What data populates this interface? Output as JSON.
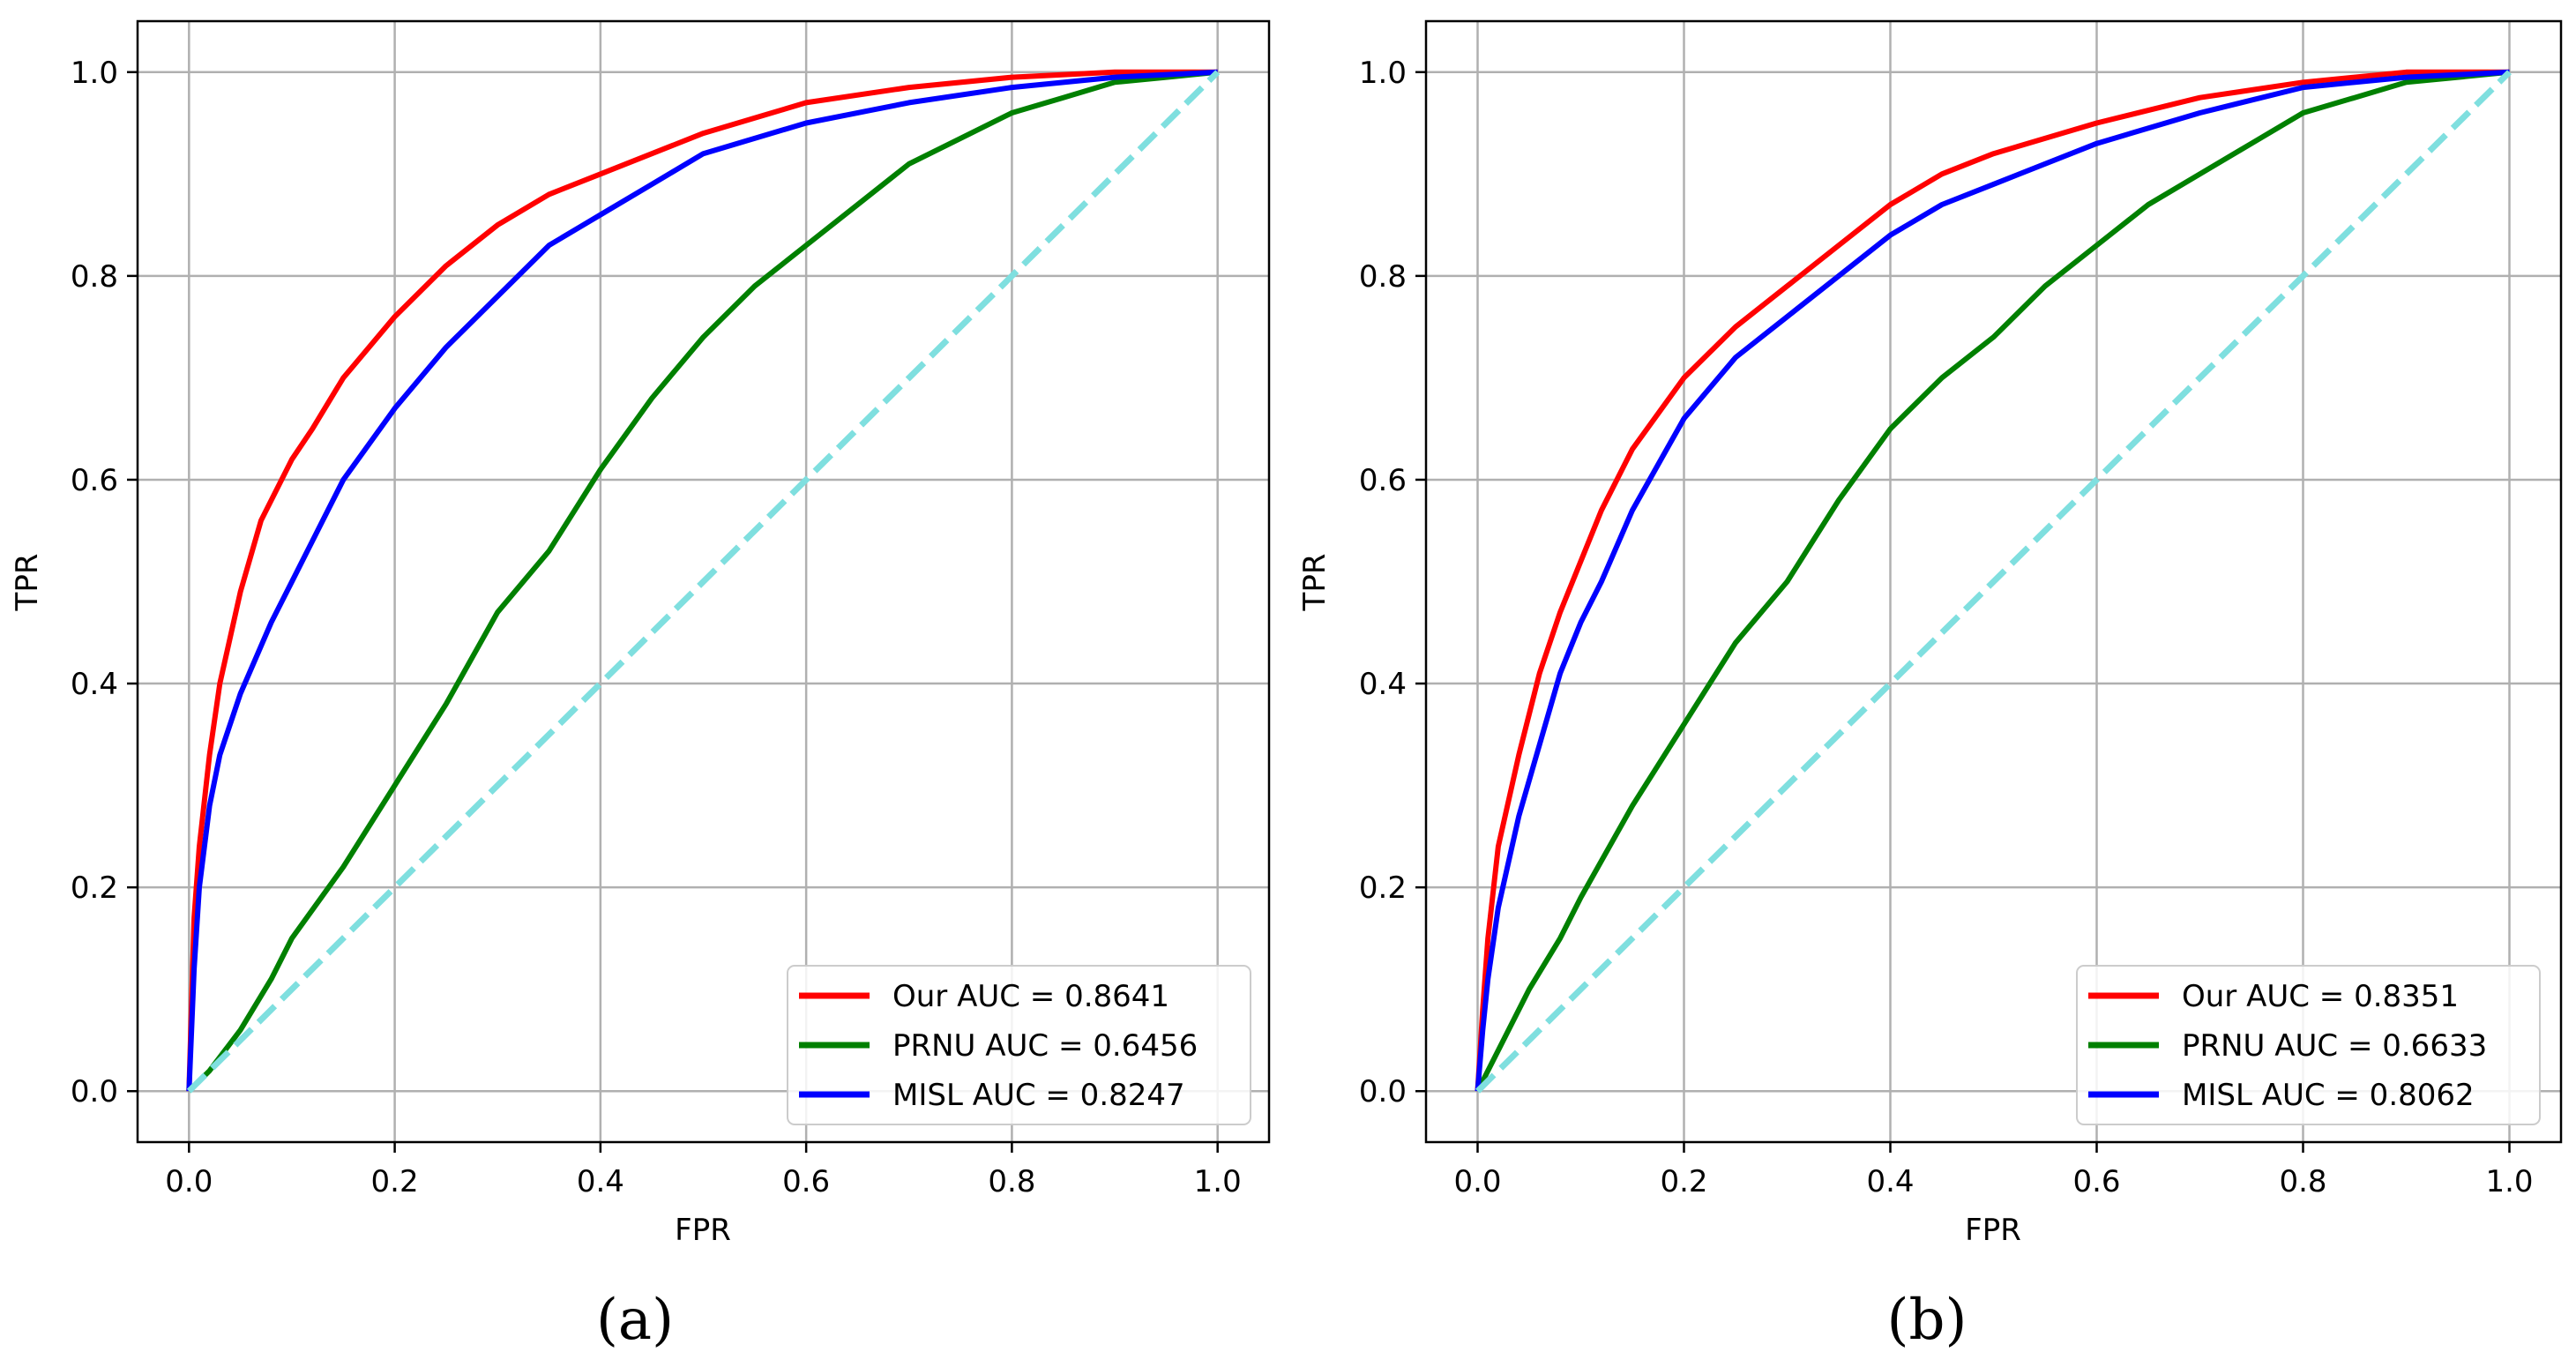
{
  "chart_data": [
    {
      "type": "line",
      "panel_label": "(a)",
      "xlabel": "FPR",
      "ylabel": "TPR",
      "xlim": [
        -0.05,
        1.05
      ],
      "ylim": [
        -0.05,
        1.05
      ],
      "xticks": [
        0.0,
        0.2,
        0.4,
        0.6,
        0.8,
        1.0
      ],
      "yticks": [
        0.0,
        0.2,
        0.4,
        0.6,
        0.8,
        1.0
      ],
      "xtick_labels": [
        "0.0",
        "0.2",
        "0.4",
        "0.6",
        "0.8",
        "1.0"
      ],
      "ytick_labels": [
        "0.0",
        "0.2",
        "0.4",
        "0.6",
        "0.8",
        "1.0"
      ],
      "grid": true,
      "legend_position": "lower-right",
      "series": [
        {
          "name": "Our AUC = 0.8641",
          "color": "#ff0000",
          "style": "solid",
          "x": [
            0,
            0.005,
            0.01,
            0.02,
            0.03,
            0.05,
            0.07,
            0.1,
            0.12,
            0.15,
            0.2,
            0.25,
            0.3,
            0.35,
            0.4,
            0.45,
            0.5,
            0.6,
            0.7,
            0.8,
            0.9,
            1.0
          ],
          "y": [
            0,
            0.17,
            0.24,
            0.33,
            0.4,
            0.49,
            0.56,
            0.62,
            0.65,
            0.7,
            0.76,
            0.81,
            0.85,
            0.88,
            0.9,
            0.92,
            0.94,
            0.97,
            0.985,
            0.995,
            1.0,
            1.0
          ]
        },
        {
          "name": "PRNU AUC = 0.6456",
          "color": "#008000",
          "style": "solid",
          "x": [
            0,
            0.02,
            0.05,
            0.08,
            0.1,
            0.15,
            0.2,
            0.25,
            0.3,
            0.35,
            0.4,
            0.45,
            0.5,
            0.55,
            0.6,
            0.65,
            0.7,
            0.75,
            0.8,
            0.85,
            0.9,
            0.95,
            1.0
          ],
          "y": [
            0,
            0.02,
            0.06,
            0.11,
            0.15,
            0.22,
            0.3,
            0.38,
            0.47,
            0.53,
            0.61,
            0.68,
            0.74,
            0.79,
            0.83,
            0.87,
            0.91,
            0.935,
            0.96,
            0.975,
            0.99,
            0.995,
            1.0
          ]
        },
        {
          "name": "MISL AUC = 0.8247",
          "color": "#0000ff",
          "style": "solid",
          "x": [
            0,
            0.005,
            0.01,
            0.02,
            0.03,
            0.05,
            0.08,
            0.1,
            0.12,
            0.15,
            0.2,
            0.25,
            0.3,
            0.35,
            0.4,
            0.45,
            0.5,
            0.6,
            0.7,
            0.8,
            0.9,
            1.0
          ],
          "y": [
            0,
            0.12,
            0.2,
            0.28,
            0.33,
            0.39,
            0.46,
            0.5,
            0.54,
            0.6,
            0.67,
            0.73,
            0.78,
            0.83,
            0.86,
            0.89,
            0.92,
            0.95,
            0.97,
            0.985,
            0.995,
            1.0
          ]
        },
        {
          "name": "",
          "color": "#7fdfdf",
          "style": "dashed",
          "x": [
            0,
            1
          ],
          "y": [
            0,
            1
          ]
        }
      ]
    },
    {
      "type": "line",
      "panel_label": "(b)",
      "xlabel": "FPR",
      "ylabel": "TPR",
      "xlim": [
        -0.05,
        1.05
      ],
      "ylim": [
        -0.05,
        1.05
      ],
      "xticks": [
        0.0,
        0.2,
        0.4,
        0.6,
        0.8,
        1.0
      ],
      "yticks": [
        0.0,
        0.2,
        0.4,
        0.6,
        0.8,
        1.0
      ],
      "xtick_labels": [
        "0.0",
        "0.2",
        "0.4",
        "0.6",
        "0.8",
        "1.0"
      ],
      "ytick_labels": [
        "0.0",
        "0.2",
        "0.4",
        "0.6",
        "0.8",
        "1.0"
      ],
      "grid": true,
      "legend_position": "lower-right",
      "series": [
        {
          "name": "Our AUC = 0.8351",
          "color": "#ff0000",
          "style": "solid",
          "x": [
            0,
            0.005,
            0.01,
            0.02,
            0.04,
            0.06,
            0.08,
            0.1,
            0.12,
            0.15,
            0.2,
            0.25,
            0.3,
            0.35,
            0.4,
            0.45,
            0.5,
            0.6,
            0.7,
            0.8,
            0.9,
            1.0
          ],
          "y": [
            0,
            0.08,
            0.15,
            0.24,
            0.33,
            0.41,
            0.47,
            0.52,
            0.57,
            0.63,
            0.7,
            0.75,
            0.79,
            0.83,
            0.87,
            0.9,
            0.92,
            0.95,
            0.975,
            0.99,
            1.0,
            1.0
          ]
        },
        {
          "name": "PRNU AUC = 0.6633",
          "color": "#008000",
          "style": "solid",
          "x": [
            0,
            0.02,
            0.05,
            0.08,
            0.1,
            0.15,
            0.2,
            0.25,
            0.3,
            0.35,
            0.4,
            0.45,
            0.5,
            0.55,
            0.6,
            0.65,
            0.7,
            0.75,
            0.8,
            0.85,
            0.9,
            0.95,
            1.0
          ],
          "y": [
            0,
            0.04,
            0.1,
            0.15,
            0.19,
            0.28,
            0.36,
            0.44,
            0.5,
            0.58,
            0.65,
            0.7,
            0.74,
            0.79,
            0.83,
            0.87,
            0.9,
            0.93,
            0.96,
            0.975,
            0.99,
            0.995,
            1.0
          ]
        },
        {
          "name": "MISL AUC = 0.8062",
          "color": "#0000ff",
          "style": "solid",
          "x": [
            0,
            0.005,
            0.01,
            0.02,
            0.04,
            0.06,
            0.08,
            0.1,
            0.12,
            0.15,
            0.2,
            0.25,
            0.3,
            0.35,
            0.4,
            0.45,
            0.5,
            0.6,
            0.7,
            0.8,
            0.9,
            1.0
          ],
          "y": [
            0,
            0.06,
            0.11,
            0.18,
            0.27,
            0.34,
            0.41,
            0.46,
            0.5,
            0.57,
            0.66,
            0.72,
            0.76,
            0.8,
            0.84,
            0.87,
            0.89,
            0.93,
            0.96,
            0.985,
            0.995,
            1.0
          ]
        },
        {
          "name": "",
          "color": "#7fdfdf",
          "style": "dashed",
          "x": [
            0,
            1
          ],
          "y": [
            0,
            1
          ]
        }
      ]
    }
  ]
}
